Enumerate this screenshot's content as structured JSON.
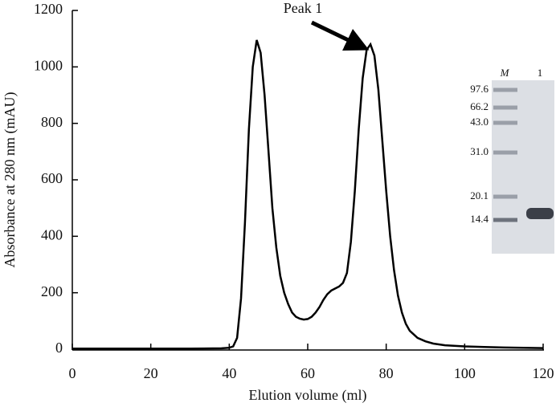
{
  "chart_data": {
    "type": "line",
    "annotation": "Peak 1",
    "xlabel": "Elution volume (ml)",
    "ylabel": "Absorbance at 280 nm (mAU)",
    "x": [
      0,
      10,
      20,
      30,
      38,
      40,
      41,
      42,
      43,
      44,
      45,
      46,
      47,
      48,
      49,
      50,
      51,
      52,
      53,
      54,
      55,
      56,
      57,
      58,
      59,
      60,
      61,
      62,
      63,
      64,
      65,
      66,
      67,
      68,
      69,
      70,
      71,
      72,
      73,
      74,
      75,
      76,
      77,
      78,
      79,
      80,
      81,
      82,
      83,
      84,
      85,
      86,
      88,
      90,
      92,
      95,
      100,
      105,
      110,
      115,
      120
    ],
    "series": [
      {
        "color": "#000000",
        "values": [
          2,
          2,
          2,
          2,
          3,
          5,
          10,
          40,
          180,
          450,
          780,
          1000,
          1095,
          1050,
          900,
          700,
          500,
          360,
          260,
          200,
          160,
          130,
          115,
          108,
          105,
          107,
          115,
          130,
          150,
          175,
          195,
          208,
          215,
          222,
          235,
          270,
          380,
          560,
          780,
          960,
          1060,
          1080,
          1040,
          920,
          740,
          560,
          400,
          280,
          190,
          130,
          90,
          65,
          40,
          28,
          20,
          14,
          10,
          8,
          6,
          5,
          4
        ]
      }
    ],
    "xlim": [
      0,
      120
    ],
    "xticks": [
      0,
      20,
      40,
      60,
      80,
      100,
      120
    ],
    "ylim": [
      0,
      1200
    ],
    "yticks": [
      0,
      200,
      400,
      600,
      800,
      1000,
      1200
    ],
    "inset": {
      "lanes": [
        "M",
        "1"
      ],
      "markers": [
        "97.6",
        "66.2",
        "43.0",
        "31.0",
        "20.1",
        "14.4"
      ]
    }
  }
}
